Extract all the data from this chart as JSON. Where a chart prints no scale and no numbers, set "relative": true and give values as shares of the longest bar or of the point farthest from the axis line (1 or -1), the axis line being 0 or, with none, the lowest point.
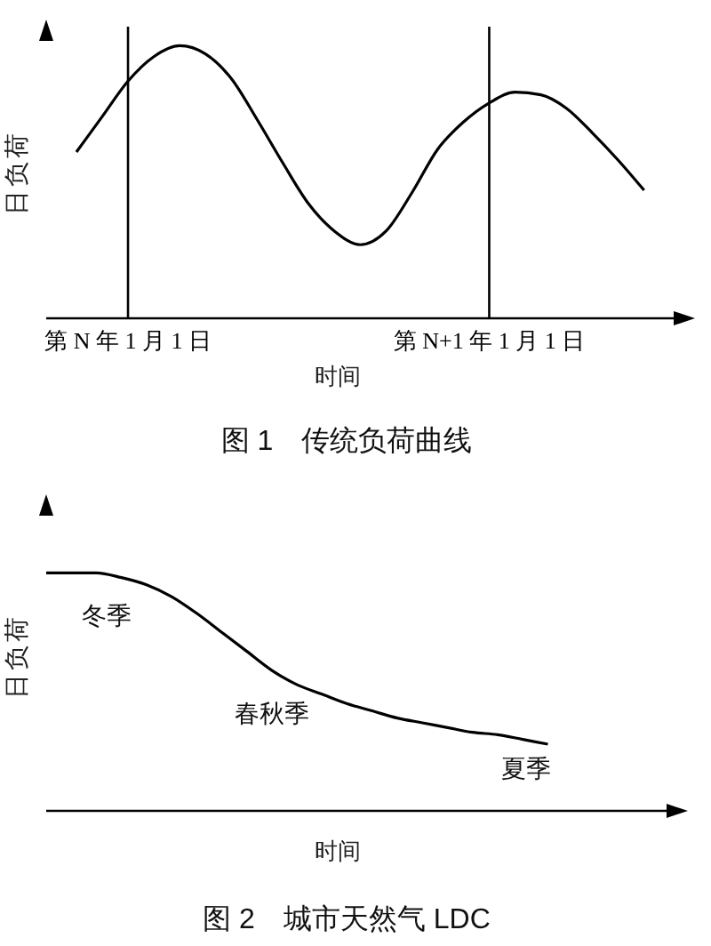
{
  "chart_data": [
    {
      "type": "line",
      "title": "图 1　传统负荷曲线",
      "xlabel": "时间",
      "ylabel": "日负荷",
      "relative": true,
      "color": "#000000",
      "categories": [
        null,
        null,
        "第 N 年 1 月 1 日",
        null,
        null,
        null,
        null,
        null,
        null,
        null,
        null,
        null,
        null,
        null,
        null,
        null,
        "第 N+1 年 1 月 1 日",
        null,
        null,
        null,
        null,
        null,
        null
      ],
      "values": [
        0.61,
        0.74,
        0.87,
        0.96,
        1,
        0.97,
        0.88,
        0.73,
        0.57,
        0.42,
        0.32,
        0.27,
        0.32,
        0.46,
        0.62,
        0.72,
        0.79,
        0.83,
        0.82,
        0.77,
        0.68,
        0.58,
        0.47
      ],
      "ref_lines": [
        {
          "axis": "x",
          "value": "第 N 年 1 月 1 日",
          "color": "#000000"
        },
        {
          "axis": "x",
          "value": "第 N+1 年 1 月 1 日",
          "color": "#000000"
        }
      ]
    },
    {
      "type": "line",
      "title": "图 2　城市天然气 LDC",
      "xlabel": "时间",
      "ylabel": "日负荷",
      "relative": true,
      "color": "#000000",
      "categories": [
        null,
        null,
        null,
        null,
        null,
        null,
        null,
        null,
        null,
        null,
        null,
        null,
        null,
        null,
        null,
        null,
        null,
        null,
        null,
        null,
        null
      ],
      "values": [
        1,
        1,
        1,
        0.98,
        0.95,
        0.9,
        0.83,
        0.75,
        0.67,
        0.59,
        0.53,
        0.49,
        0.45,
        0.42,
        0.39,
        0.37,
        0.35,
        0.33,
        0.32,
        0.3,
        0.28
      ],
      "annotations": [
        "冬季",
        "春秋季",
        "夏季"
      ]
    }
  ]
}
